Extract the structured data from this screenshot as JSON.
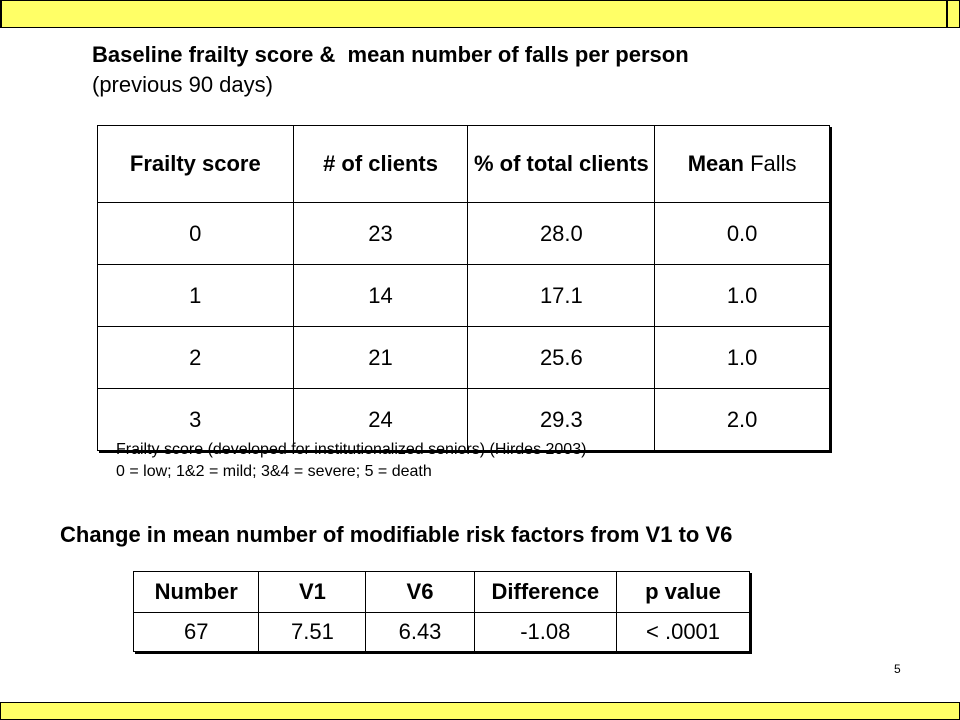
{
  "colors": {
    "bar_fill": "#ffff66",
    "bar_border": "#000000"
  },
  "heading1": {
    "title": "Baseline frailty score &  mean number of falls per person",
    "subtitle": "(previous 90 days)"
  },
  "table1": {
    "headers": {
      "frailty": "Frailty score",
      "clients": "# of clients",
      "pct": "% of total clients",
      "mean_bold": "Mean",
      "mean_rest": " Falls"
    },
    "rows": [
      {
        "frailty": "0",
        "clients": "23",
        "pct": "28.0",
        "mean": "0.0"
      },
      {
        "frailty": "1",
        "clients": "14",
        "pct": "17.1",
        "mean": "1.0"
      },
      {
        "frailty": "2",
        "clients": "21",
        "pct": "25.6",
        "mean": "1.0"
      },
      {
        "frailty": "3",
        "clients": "24",
        "pct": "29.3",
        "mean": "2.0"
      }
    ]
  },
  "note": {
    "line1": "Frailty score (developed for institutionalized seniors) (Hirdes 2003)",
    "line2": "0 = low; 1&2 = mild; 3&4 = severe; 5 = death"
  },
  "heading2": {
    "title": "Change in mean number of modifiable risk factors from V1 to V6"
  },
  "table2": {
    "headers": {
      "number": "Number",
      "v1": "V1",
      "v6": "V6",
      "difference": "Difference",
      "p": "p value"
    },
    "row": {
      "number": "67",
      "v1": "7.51",
      "v6": "6.43",
      "difference": "-1.08",
      "p": "< .0001"
    }
  },
  "page_number": "5"
}
